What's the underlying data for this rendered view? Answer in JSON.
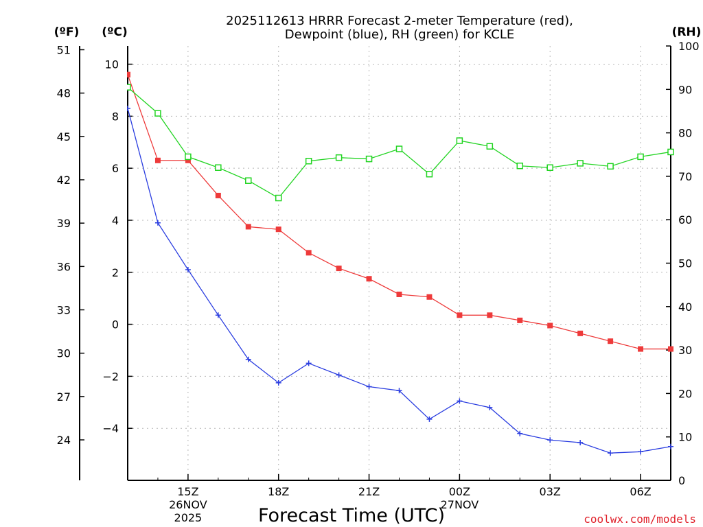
{
  "chart_data": {
    "type": "line",
    "title_line1": "2025112613 HRRR Forecast 2-meter Temperature (red),",
    "title_line2": "Dewpoint (blue), RH (green) for KCLE",
    "units": {
      "fahrenheit": "(ºF)",
      "celsius": "(ºC)",
      "rh": "(RH)"
    },
    "xlabel": "Forecast Time (UTC)",
    "credit": "coolwx.com/models",
    "x_hours": [
      0,
      1,
      2,
      3,
      4,
      5,
      6,
      7,
      8,
      9,
      10,
      11,
      12,
      13,
      14,
      15,
      16,
      17,
      18
    ],
    "x_range": [
      0,
      18
    ],
    "celsius_range": [
      -6.0,
      10.7
    ],
    "rh_range": [
      0,
      100
    ],
    "x_ticks": [
      {
        "hour": 2,
        "label": "15Z",
        "sub1": "26NOV",
        "sub2": "2025"
      },
      {
        "hour": 5,
        "label": "18Z"
      },
      {
        "hour": 8,
        "label": "21Z"
      },
      {
        "hour": 11,
        "label": "00Z",
        "sub1": "27NOV"
      },
      {
        "hour": 14,
        "label": "03Z"
      },
      {
        "hour": 17,
        "label": "06Z"
      }
    ],
    "celsius_ticks": [
      -4,
      -2,
      0,
      2,
      4,
      6,
      8,
      10
    ],
    "fahrenheit_ticks": [
      24,
      27,
      30,
      33,
      36,
      39,
      42,
      45,
      48,
      51
    ],
    "rh_ticks": [
      0,
      10,
      20,
      30,
      40,
      50,
      60,
      70,
      80,
      90,
      100
    ],
    "series": [
      {
        "name": "Temperature",
        "color": "#ee3a3a",
        "marker": "filled-square",
        "values": [
          9.6,
          6.3,
          6.3,
          4.95,
          3.75,
          3.65,
          2.75,
          2.15,
          1.75,
          1.15,
          1.05,
          0.35,
          0.35,
          0.15,
          -0.05,
          -0.35,
          -0.65,
          -0.95,
          -0.95
        ]
      },
      {
        "name": "Dewpoint",
        "color": "#2a3de0",
        "marker": "plus",
        "values": [
          8.3,
          3.9,
          2.1,
          0.35,
          -1.35,
          -2.25,
          -1.5,
          -1.95,
          -2.4,
          -2.55,
          -3.65,
          -2.95,
          -3.2,
          -4.2,
          -4.45,
          -4.55,
          -4.95,
          -4.9,
          -4.7
        ]
      },
      {
        "name": "RH",
        "color": "#22d422",
        "marker": "open-square",
        "axis": "rh",
        "values": [
          90.5,
          84.5,
          74.5,
          72.0,
          69.0,
          65.0,
          73.5,
          74.3,
          74.0,
          76.3,
          70.5,
          78.2,
          76.9,
          72.4,
          72.0,
          73.0,
          72.3,
          74.5,
          75.6
        ]
      }
    ]
  }
}
